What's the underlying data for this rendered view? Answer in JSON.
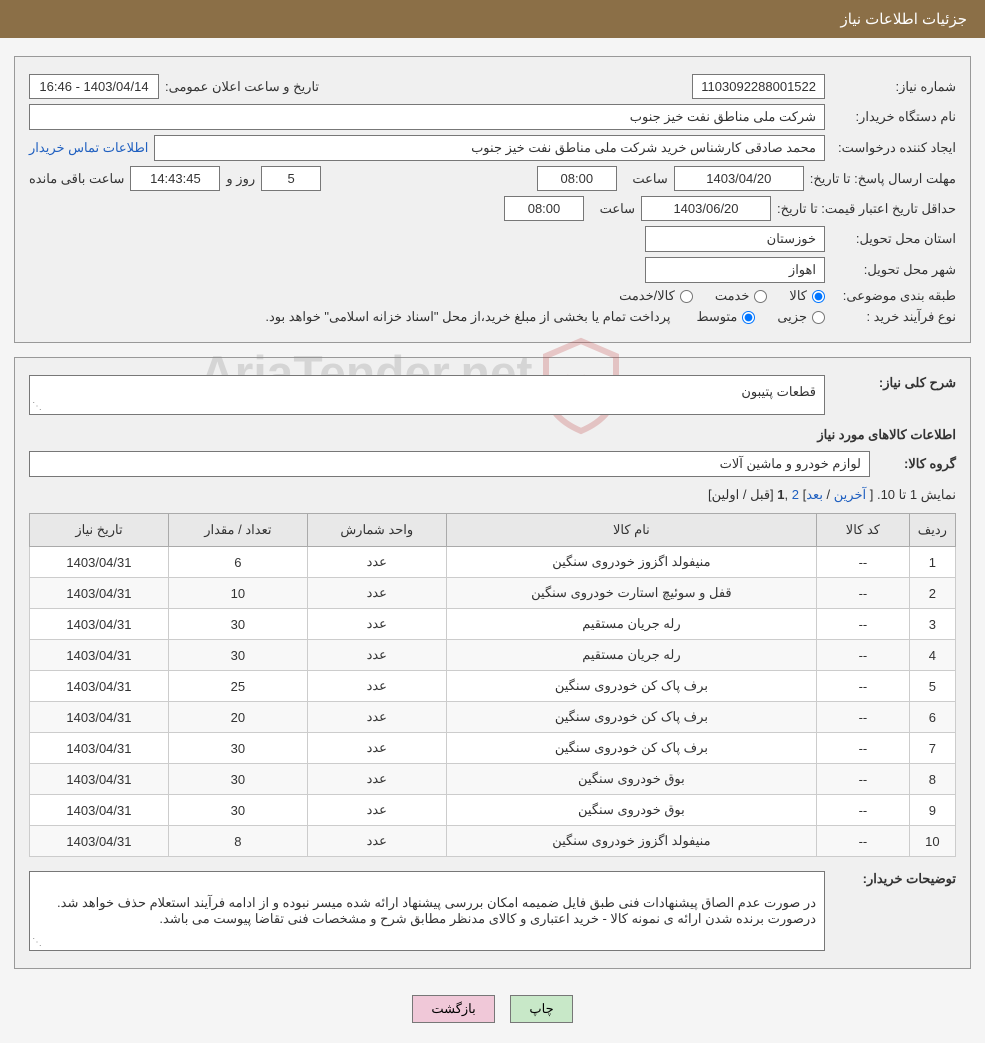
{
  "header": {
    "title": "جزئیات اطلاعات نیاز"
  },
  "info": {
    "need_number_label": "شماره نیاز:",
    "need_number": "1103092288001522",
    "announce_label": "تاریخ و ساعت اعلان عمومی:",
    "announce_value": "1403/04/14 - 16:46",
    "buyer_org_label": "نام دستگاه خریدار:",
    "buyer_org": "شرکت ملی مناطق نفت خیز جنوب",
    "requester_label": "ایجاد کننده درخواست:",
    "requester": "محمد صادقی  کارشناس خرید  شرکت ملی مناطق نفت خیز جنوب",
    "contact_link": "اطلاعات تماس خریدار",
    "deadline_label": "مهلت ارسال پاسخ: تا تاریخ:",
    "deadline_date": "1403/04/20",
    "time_label": "ساعت",
    "deadline_time": "08:00",
    "days_label": "روز و",
    "days_value": "5",
    "countdown": "14:43:45",
    "remaining_label": "ساعت باقی مانده",
    "validity_label": "حداقل تاریخ اعتبار قیمت: تا تاریخ:",
    "validity_date": "1403/06/20",
    "validity_time": "08:00",
    "province_label": "استان محل تحویل:",
    "province": "خوزستان",
    "city_label": "شهر محل تحویل:",
    "city": "اهواز",
    "category_label": "طبقه بندی موضوعی:",
    "cat_goods": "کالا",
    "cat_service": "خدمت",
    "cat_goods_service": "کالا/خدمت",
    "process_label": "نوع فرآیند خرید :",
    "proc_minor": "جزیی",
    "proc_medium": "متوسط",
    "process_note": "پرداخت تمام یا بخشی از مبلغ خرید،از محل \"اسناد خزانه اسلامی\" خواهد بود."
  },
  "need": {
    "desc_label": "شرح کلی نیاز:",
    "desc_value": "قطعات پتیبون",
    "items_heading": "اطلاعات کالاهای مورد نیاز",
    "group_label": "گروه کالا:",
    "group_value": "لوازم خودرو و ماشین آلات"
  },
  "pagination": {
    "prefix": "نمایش 1 تا 10. [ ",
    "last": "آخرین",
    "sep1": " / ",
    "next": "بعد",
    "sep2": "] ",
    "page2": "2",
    "comma": " ,",
    "page1": "1",
    "suffix": " [قبل / اولین]"
  },
  "table": {
    "headers": [
      "ردیف",
      "کد کالا",
      "نام کالا",
      "واحد شمارش",
      "تعداد / مقدار",
      "تاریخ نیاز"
    ],
    "col_widths": [
      "5%",
      "10%",
      "40%",
      "15%",
      "15%",
      "15%"
    ],
    "rows": [
      [
        "1",
        "--",
        "منیفولد اگزوز خودروی سنگین",
        "عدد",
        "6",
        "1403/04/31"
      ],
      [
        "2",
        "--",
        "قفل و سوئیچ استارت خودروی سنگین",
        "عدد",
        "10",
        "1403/04/31"
      ],
      [
        "3",
        "--",
        "رله جریان مستقیم",
        "عدد",
        "30",
        "1403/04/31"
      ],
      [
        "4",
        "--",
        "رله جریان مستقیم",
        "عدد",
        "30",
        "1403/04/31"
      ],
      [
        "5",
        "--",
        "برف پاک کن خودروی سنگین",
        "عدد",
        "25",
        "1403/04/31"
      ],
      [
        "6",
        "--",
        "برف پاک کن خودروی سنگین",
        "عدد",
        "20",
        "1403/04/31"
      ],
      [
        "7",
        "--",
        "برف پاک کن خودروی سنگین",
        "عدد",
        "30",
        "1403/04/31"
      ],
      [
        "8",
        "--",
        "بوق خودروی سنگین",
        "عدد",
        "30",
        "1403/04/31"
      ],
      [
        "9",
        "--",
        "بوق خودروی سنگین",
        "عدد",
        "30",
        "1403/04/31"
      ],
      [
        "10",
        "--",
        "منیفولد اگزوز خودروی سنگین",
        "عدد",
        "8",
        "1403/04/31"
      ]
    ]
  },
  "buyer_notes": {
    "label": "توضیحات خریدار:",
    "text": "در صورت عدم الصاق پیشنهادات فنی طبق فایل ضمیمه امکان بررسی پیشنهاد ارائه شده میسر نبوده و از ادامه فرآیند استعلام حذف خواهد شد.\nدرصورت برنده شدن ارائه ی نمونه کالا - خرید اعتباری و کالای مدنظر مطابق شرح و مشخصات فنی تقاضا پیوست می باشد."
  },
  "buttons": {
    "print": "چاپ",
    "back": "بازگشت"
  },
  "colors": {
    "header_bg": "#8b6f47",
    "border": "#999",
    "link": "#2060c0",
    "btn_print": "#c8e8c8",
    "btn_back": "#f0c8d8"
  }
}
